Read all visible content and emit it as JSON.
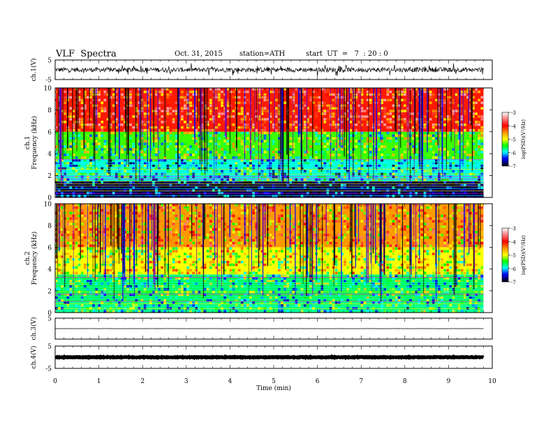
{
  "header": {
    "title": "VLF  Spectra",
    "date": "Oct. 31, 2015",
    "station": "station=ATH",
    "start": "start  UT  =   7  : 20 : 0"
  },
  "chart_data": [
    {
      "type": "line",
      "name": "ch1-waveform",
      "ylabel": "ch.1(V)",
      "ylim": [
        -5,
        5
      ],
      "y_ticks": [
        5,
        -5
      ],
      "x_range_min": [
        0,
        9.8
      ],
      "baseline": 0,
      "amplitude": 1.2
    },
    {
      "type": "heatmap",
      "name": "ch1-spectrogram",
      "ylabel": "ch.1\nFrequency (kHz)",
      "ylim": [
        0,
        10
      ],
      "y_ticks": [
        0,
        2,
        4,
        6,
        8,
        10
      ],
      "x_range_min": [
        0,
        9.8
      ],
      "colorbar": {
        "label": "log(PSD)(V²/Hz)",
        "ticks": [
          -3,
          -4,
          -5,
          -6,
          -7
        ],
        "range": [
          -7,
          -3
        ]
      },
      "bands": [
        {
          "from_khz": 0,
          "to_khz": 1.5,
          "level": -6.8
        },
        {
          "from_khz": 1.5,
          "to_khz": 3.5,
          "level": -5.8
        },
        {
          "from_khz": 3.5,
          "to_khz": 6,
          "level": -5.2
        },
        {
          "from_khz": 6,
          "to_khz": 10,
          "level": -3.7
        }
      ]
    },
    {
      "type": "heatmap",
      "name": "ch2-spectrogram",
      "ylabel": "ch.2\nFrequency (kHz)",
      "ylim": [
        0,
        10
      ],
      "y_ticks": [
        0,
        2,
        4,
        6,
        8,
        10
      ],
      "x_range_min": [
        0,
        9.8
      ],
      "colorbar": {
        "label": "log(PSD)(V²/Hz)",
        "ticks": [
          -3,
          -4,
          -5,
          -6,
          -7
        ],
        "range": [
          -7,
          -3
        ]
      },
      "bands": [
        {
          "from_khz": 0,
          "to_khz": 1,
          "level": -5.6
        },
        {
          "from_khz": 1,
          "to_khz": 3.5,
          "level": -5.5
        },
        {
          "from_khz": 3.5,
          "to_khz": 6,
          "level": -4.8
        },
        {
          "from_khz": 6,
          "to_khz": 10,
          "level": -4.2
        }
      ]
    },
    {
      "type": "line",
      "name": "ch3-waveform",
      "ylabel": "ch.3(V)",
      "ylim": [
        -5,
        5
      ],
      "y_ticks": [
        5
      ],
      "x_range_min": [
        0,
        9.8
      ],
      "baseline": 0,
      "amplitude": 0.05
    },
    {
      "type": "line",
      "name": "ch4-waveform",
      "ylabel": "ch.4(V)",
      "ylim": [
        -5,
        5
      ],
      "y_ticks": [
        5,
        -5
      ],
      "x_range_min": [
        0,
        9.8
      ],
      "baseline": 0,
      "amplitude": 0.15
    }
  ],
  "x_axis": {
    "label": "Time  (min)",
    "ticks": [
      "0",
      "1",
      "2",
      "3",
      "4",
      "5",
      "6",
      "7",
      "8",
      "9",
      "10"
    ],
    "xlim": [
      0,
      10
    ]
  },
  "colors": {
    "red": "#ff0000",
    "yellow": "#ffff00",
    "green": "#00ff00",
    "cyan": "#00ffff",
    "blue": "#0000ff",
    "black": "#000000"
  }
}
